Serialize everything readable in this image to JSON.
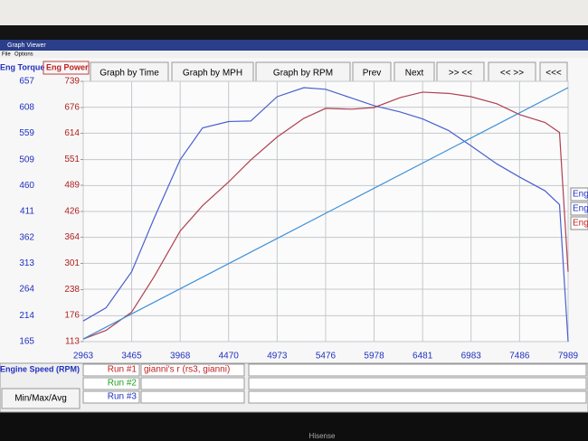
{
  "window": {
    "title": "Graph Viewer",
    "menu": [
      "File",
      "Options"
    ]
  },
  "toolbar": [
    "Graph by Time",
    "Graph by MPH",
    "Graph by RPM",
    "Prev",
    "Next",
    ">> <<",
    "<< >>",
    "<<<"
  ],
  "side_labels": [
    "Eng",
    "Eng",
    "Eng"
  ],
  "chart_data": {
    "type": "line",
    "x_label": "Engine Speed (RPM)",
    "y_label": "Eng Torque",
    "y2_label": "Eng Power",
    "xlim": [
      2963,
      7989
    ],
    "xticks": [
      2963,
      3465,
      3968,
      4470,
      4973,
      5476,
      5978,
      6481,
      6983,
      7486,
      7989
    ],
    "ylim": [
      165,
      657
    ],
    "yticks": [
      165,
      214,
      264,
      313,
      362,
      411,
      460,
      509,
      559,
      608,
      657
    ],
    "y2lim": [
      113,
      739
    ],
    "y2ticks": [
      113,
      176,
      238,
      301,
      364,
      426,
      489,
      551,
      614,
      676,
      739
    ],
    "grid": true,
    "x": [
      2963,
      3200,
      3465,
      3700,
      3968,
      4200,
      4470,
      4700,
      4973,
      5250,
      5476,
      5750,
      5978,
      6250,
      6481,
      6750,
      6983,
      7250,
      7486,
      7750,
      7900,
      7989
    ],
    "series": [
      {
        "color": "#4a5fd0",
        "values": [
          204,
          229,
          297,
          399,
          509,
          569,
          581,
          582,
          628,
          645,
          642,
          625,
          611,
          599,
          586,
          564,
          535,
          501,
          476,
          450,
          424,
          165
        ]
      },
      {
        "color": "#b04050",
        "axis": "y2",
        "values": [
          119,
          140,
          184,
          270,
          379,
          440,
          497,
          550,
          605,
          650,
          674,
          672,
          676,
          700,
          713,
          710,
          702,
          685,
          659,
          640,
          616,
          281
        ]
      },
      {
        "color": "#3d8fd8",
        "x": [
          2963,
          7989
        ],
        "values": [
          170,
          645
        ]
      }
    ]
  },
  "runs": [
    {
      "label": "Run #1",
      "color": "#c02020",
      "description": "gianni's r (rs3, gianni)"
    },
    {
      "label": "Run #2",
      "color": "#20a020"
    },
    {
      "label": "Run #3",
      "color": "#2030c0"
    }
  ],
  "button": "Min/Max/Avg",
  "brand": "Hisense"
}
